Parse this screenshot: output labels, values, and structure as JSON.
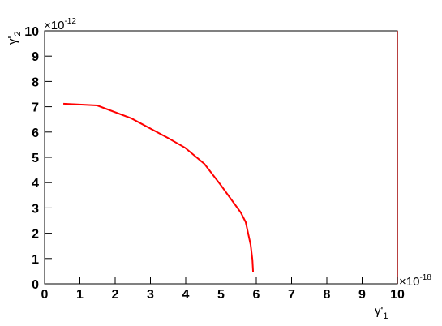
{
  "chart_data": {
    "type": "line",
    "x": [
      0.53,
      1.49,
      2.46,
      3.49,
      3.98,
      4.53,
      4.99,
      5.56,
      5.7,
      5.84,
      5.89,
      5.91
    ],
    "series": [
      {
        "color": "#ff0000",
        "values": [
          7.12,
          7.05,
          6.54,
          5.77,
          5.38,
          4.74,
          3.91,
          2.82,
          2.44,
          1.54,
          0.96,
          0.45
        ]
      }
    ],
    "xlim": [
      0,
      10
    ],
    "ylim": [
      0,
      10
    ],
    "xticks": [
      0,
      1,
      2,
      3,
      4,
      5,
      6,
      7,
      8,
      9,
      10
    ],
    "yticks": [
      0,
      1,
      2,
      3,
      4,
      5,
      6,
      7,
      8,
      9,
      10
    ],
    "x_label": {
      "symbol": "γ'",
      "subscript": "1"
    },
    "y_label": {
      "symbol": "γ'",
      "subscript": "2"
    },
    "x_multiplier": {
      "base": "×10",
      "exponent": "-18"
    },
    "y_multiplier": {
      "base": "×10",
      "exponent": "-12"
    }
  }
}
